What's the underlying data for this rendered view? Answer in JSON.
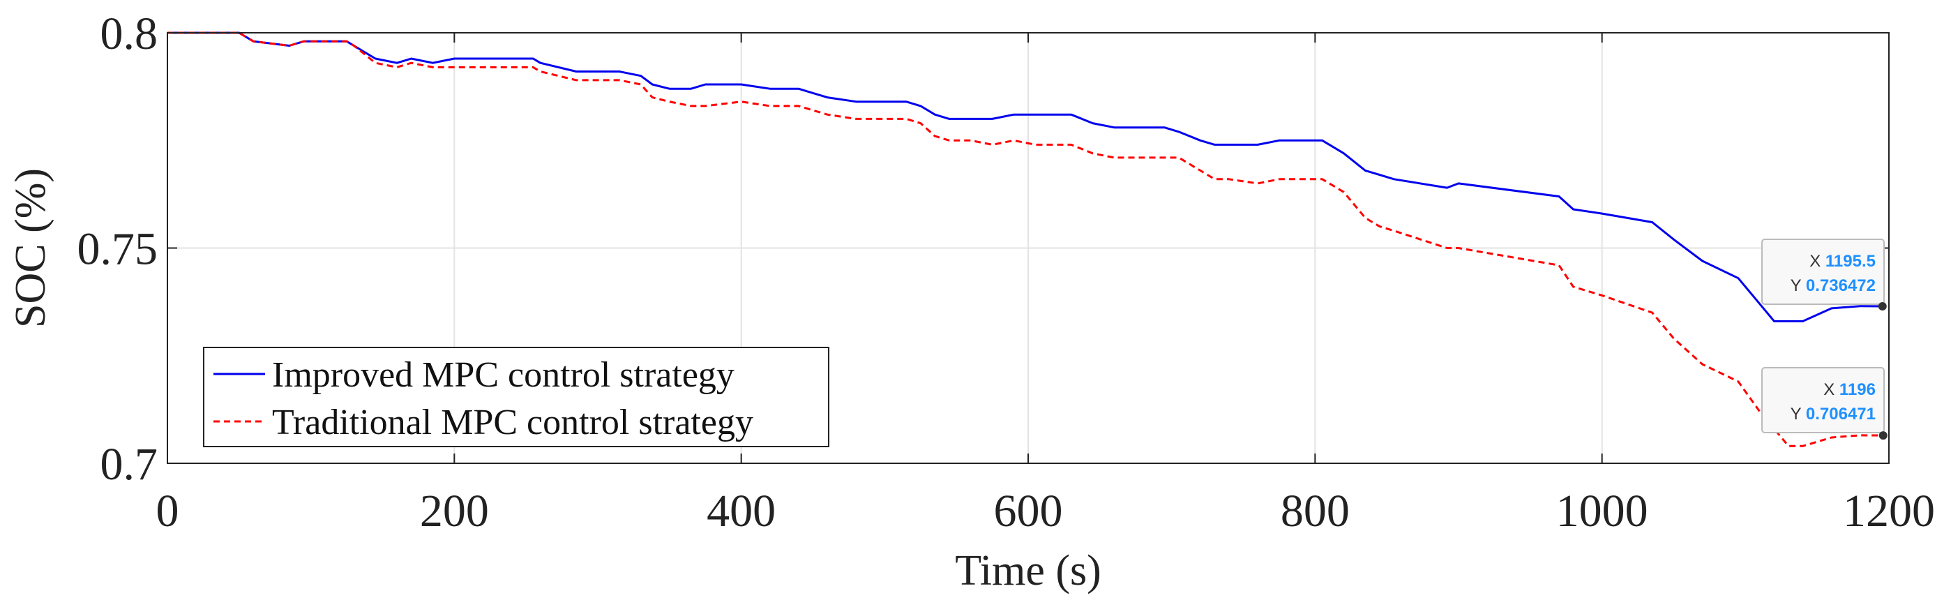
{
  "chart_data": {
    "type": "line",
    "title": "",
    "xlabel": "Time (s)",
    "ylabel": "SOC (%)",
    "xlim": [
      0,
      1200
    ],
    "ylim": [
      0.7,
      0.8
    ],
    "xticks": [
      0,
      200,
      400,
      600,
      800,
      1000,
      1200
    ],
    "xtick_labels": [
      "0",
      "200",
      "400",
      "600",
      "800",
      "1000",
      "1200"
    ],
    "yticks": [
      0.7,
      0.75,
      0.8
    ],
    "ytick_labels": [
      "0.7",
      "0.75",
      "0.8"
    ],
    "grid": true,
    "legend": {
      "position": "bottom-left"
    },
    "series": [
      {
        "name": "Improved MPC control strategy",
        "color": "#0000ee",
        "style": "solid",
        "x": [
          0,
          50,
          60,
          85,
          95,
          125,
          130,
          145,
          160,
          170,
          185,
          200,
          230,
          255,
          260,
          285,
          300,
          315,
          330,
          338,
          350,
          365,
          375,
          400,
          420,
          440,
          450,
          460,
          480,
          500,
          515,
          525,
          535,
          545,
          560,
          575,
          590,
          605,
          630,
          645,
          660,
          680,
          695,
          705,
          720,
          730,
          740,
          760,
          775,
          790,
          805,
          820,
          835,
          845,
          855,
          892,
          900,
          970,
          980,
          1000,
          1035,
          1050,
          1070,
          1095,
          1110,
          1120,
          1130,
          1140,
          1160,
          1180,
          1196
        ],
        "y": [
          0.8,
          0.8,
          0.798,
          0.797,
          0.798,
          0.798,
          0.797,
          0.794,
          0.793,
          0.794,
          0.793,
          0.794,
          0.794,
          0.794,
          0.793,
          0.791,
          0.791,
          0.791,
          0.79,
          0.788,
          0.787,
          0.787,
          0.788,
          0.788,
          0.787,
          0.787,
          0.786,
          0.785,
          0.784,
          0.784,
          0.784,
          0.783,
          0.781,
          0.78,
          0.78,
          0.78,
          0.781,
          0.781,
          0.781,
          0.779,
          0.778,
          0.778,
          0.778,
          0.777,
          0.775,
          0.774,
          0.774,
          0.774,
          0.775,
          0.775,
          0.775,
          0.772,
          0.768,
          0.767,
          0.766,
          0.764,
          0.765,
          0.762,
          0.759,
          0.758,
          0.756,
          0.752,
          0.747,
          0.743,
          0.737,
          0.733,
          0.733,
          0.733,
          0.736,
          0.7365,
          0.736472
        ]
      },
      {
        "name": "Traditional MPC control strategy",
        "color": "#ff0000",
        "style": "dashed",
        "x": [
          0,
          50,
          60,
          85,
          95,
          125,
          130,
          145,
          160,
          170,
          185,
          200,
          230,
          255,
          260,
          285,
          300,
          315,
          330,
          338,
          350,
          365,
          375,
          400,
          420,
          440,
          450,
          460,
          480,
          500,
          515,
          525,
          535,
          545,
          560,
          575,
          590,
          605,
          630,
          645,
          660,
          680,
          695,
          705,
          720,
          730,
          740,
          760,
          775,
          790,
          805,
          820,
          835,
          845,
          855,
          892,
          900,
          970,
          980,
          1000,
          1035,
          1050,
          1070,
          1095,
          1110,
          1120,
          1130,
          1140,
          1160,
          1180,
          1196
        ],
        "y": [
          0.8,
          0.8,
          0.798,
          0.797,
          0.798,
          0.798,
          0.797,
          0.793,
          0.792,
          0.793,
          0.792,
          0.792,
          0.792,
          0.792,
          0.791,
          0.789,
          0.789,
          0.789,
          0.788,
          0.785,
          0.784,
          0.783,
          0.783,
          0.784,
          0.783,
          0.783,
          0.782,
          0.781,
          0.78,
          0.78,
          0.78,
          0.779,
          0.776,
          0.775,
          0.775,
          0.774,
          0.775,
          0.774,
          0.774,
          0.772,
          0.771,
          0.771,
          0.771,
          0.771,
          0.768,
          0.766,
          0.766,
          0.765,
          0.766,
          0.766,
          0.766,
          0.763,
          0.757,
          0.755,
          0.754,
          0.75,
          0.75,
          0.746,
          0.741,
          0.739,
          0.735,
          0.729,
          0.723,
          0.719,
          0.712,
          0.708,
          0.704,
          0.704,
          0.706,
          0.7065,
          0.706471
        ]
      }
    ],
    "annotations": [
      {
        "x_label": "X",
        "x_value": "1195.5",
        "y_label": "Y",
        "y_value": "0.736472",
        "x": 1195.5,
        "y": 0.736472
      },
      {
        "x_label": "X",
        "x_value": "1196",
        "y_label": "Y",
        "y_value": "0.706471",
        "x": 1196,
        "y": 0.706471
      }
    ]
  }
}
